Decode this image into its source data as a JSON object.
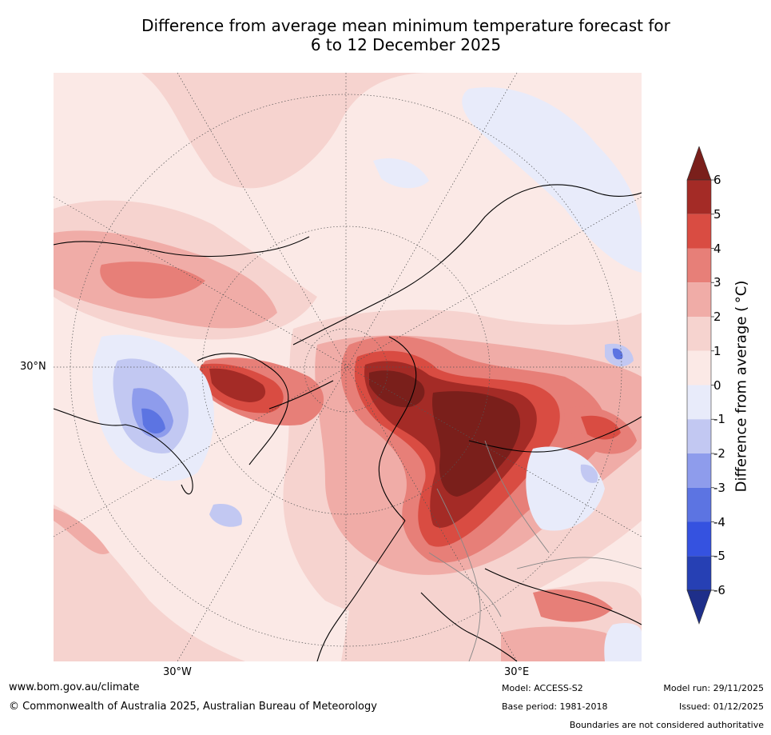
{
  "title_line1": "Difference from average mean minimum temperature forecast for",
  "title_line2": "6 to 12 December 2025",
  "map": {
    "lat_label": "30°N",
    "lon_labels": [
      "30°W",
      "30°E"
    ]
  },
  "colorbar": {
    "label": "Difference from average ( °C)",
    "ticks": [
      "6",
      "5",
      "4",
      "3",
      "2",
      "1",
      "0",
      "-1",
      "-2",
      "-3",
      "-4",
      "-5",
      "-6"
    ],
    "colors": {
      "above_6": "#7a1f1b",
      "5_6": "#a42b26",
      "4_5": "#d94c42",
      "3_4": "#e77f78",
      "2_3": "#f0aca7",
      "1_2": "#f6d3cf",
      "0_1": "#fbe9e6",
      "m1_0": "#e8ebfa",
      "m2_m1": "#c2c8f2",
      "m3_m2": "#8e9cec",
      "m4_m3": "#5c74e2",
      "m5_m4": "#3552e0",
      "m6_m5": "#2640b4",
      "below_m6": "#1e2f8a"
    }
  },
  "footer": {
    "website": "www.bom.gov.au/climate",
    "copyright": "© Commonwealth of Australia 2025, Australian Bureau of Meteorology",
    "model": "Model: ACCESS-S2",
    "base_period": "Base period: 1981-2018",
    "model_run": "Model run: 29/11/2025",
    "issued": "Issued: 01/12/2025",
    "disclaimer": "Boundaries are not considered authoritative"
  }
}
